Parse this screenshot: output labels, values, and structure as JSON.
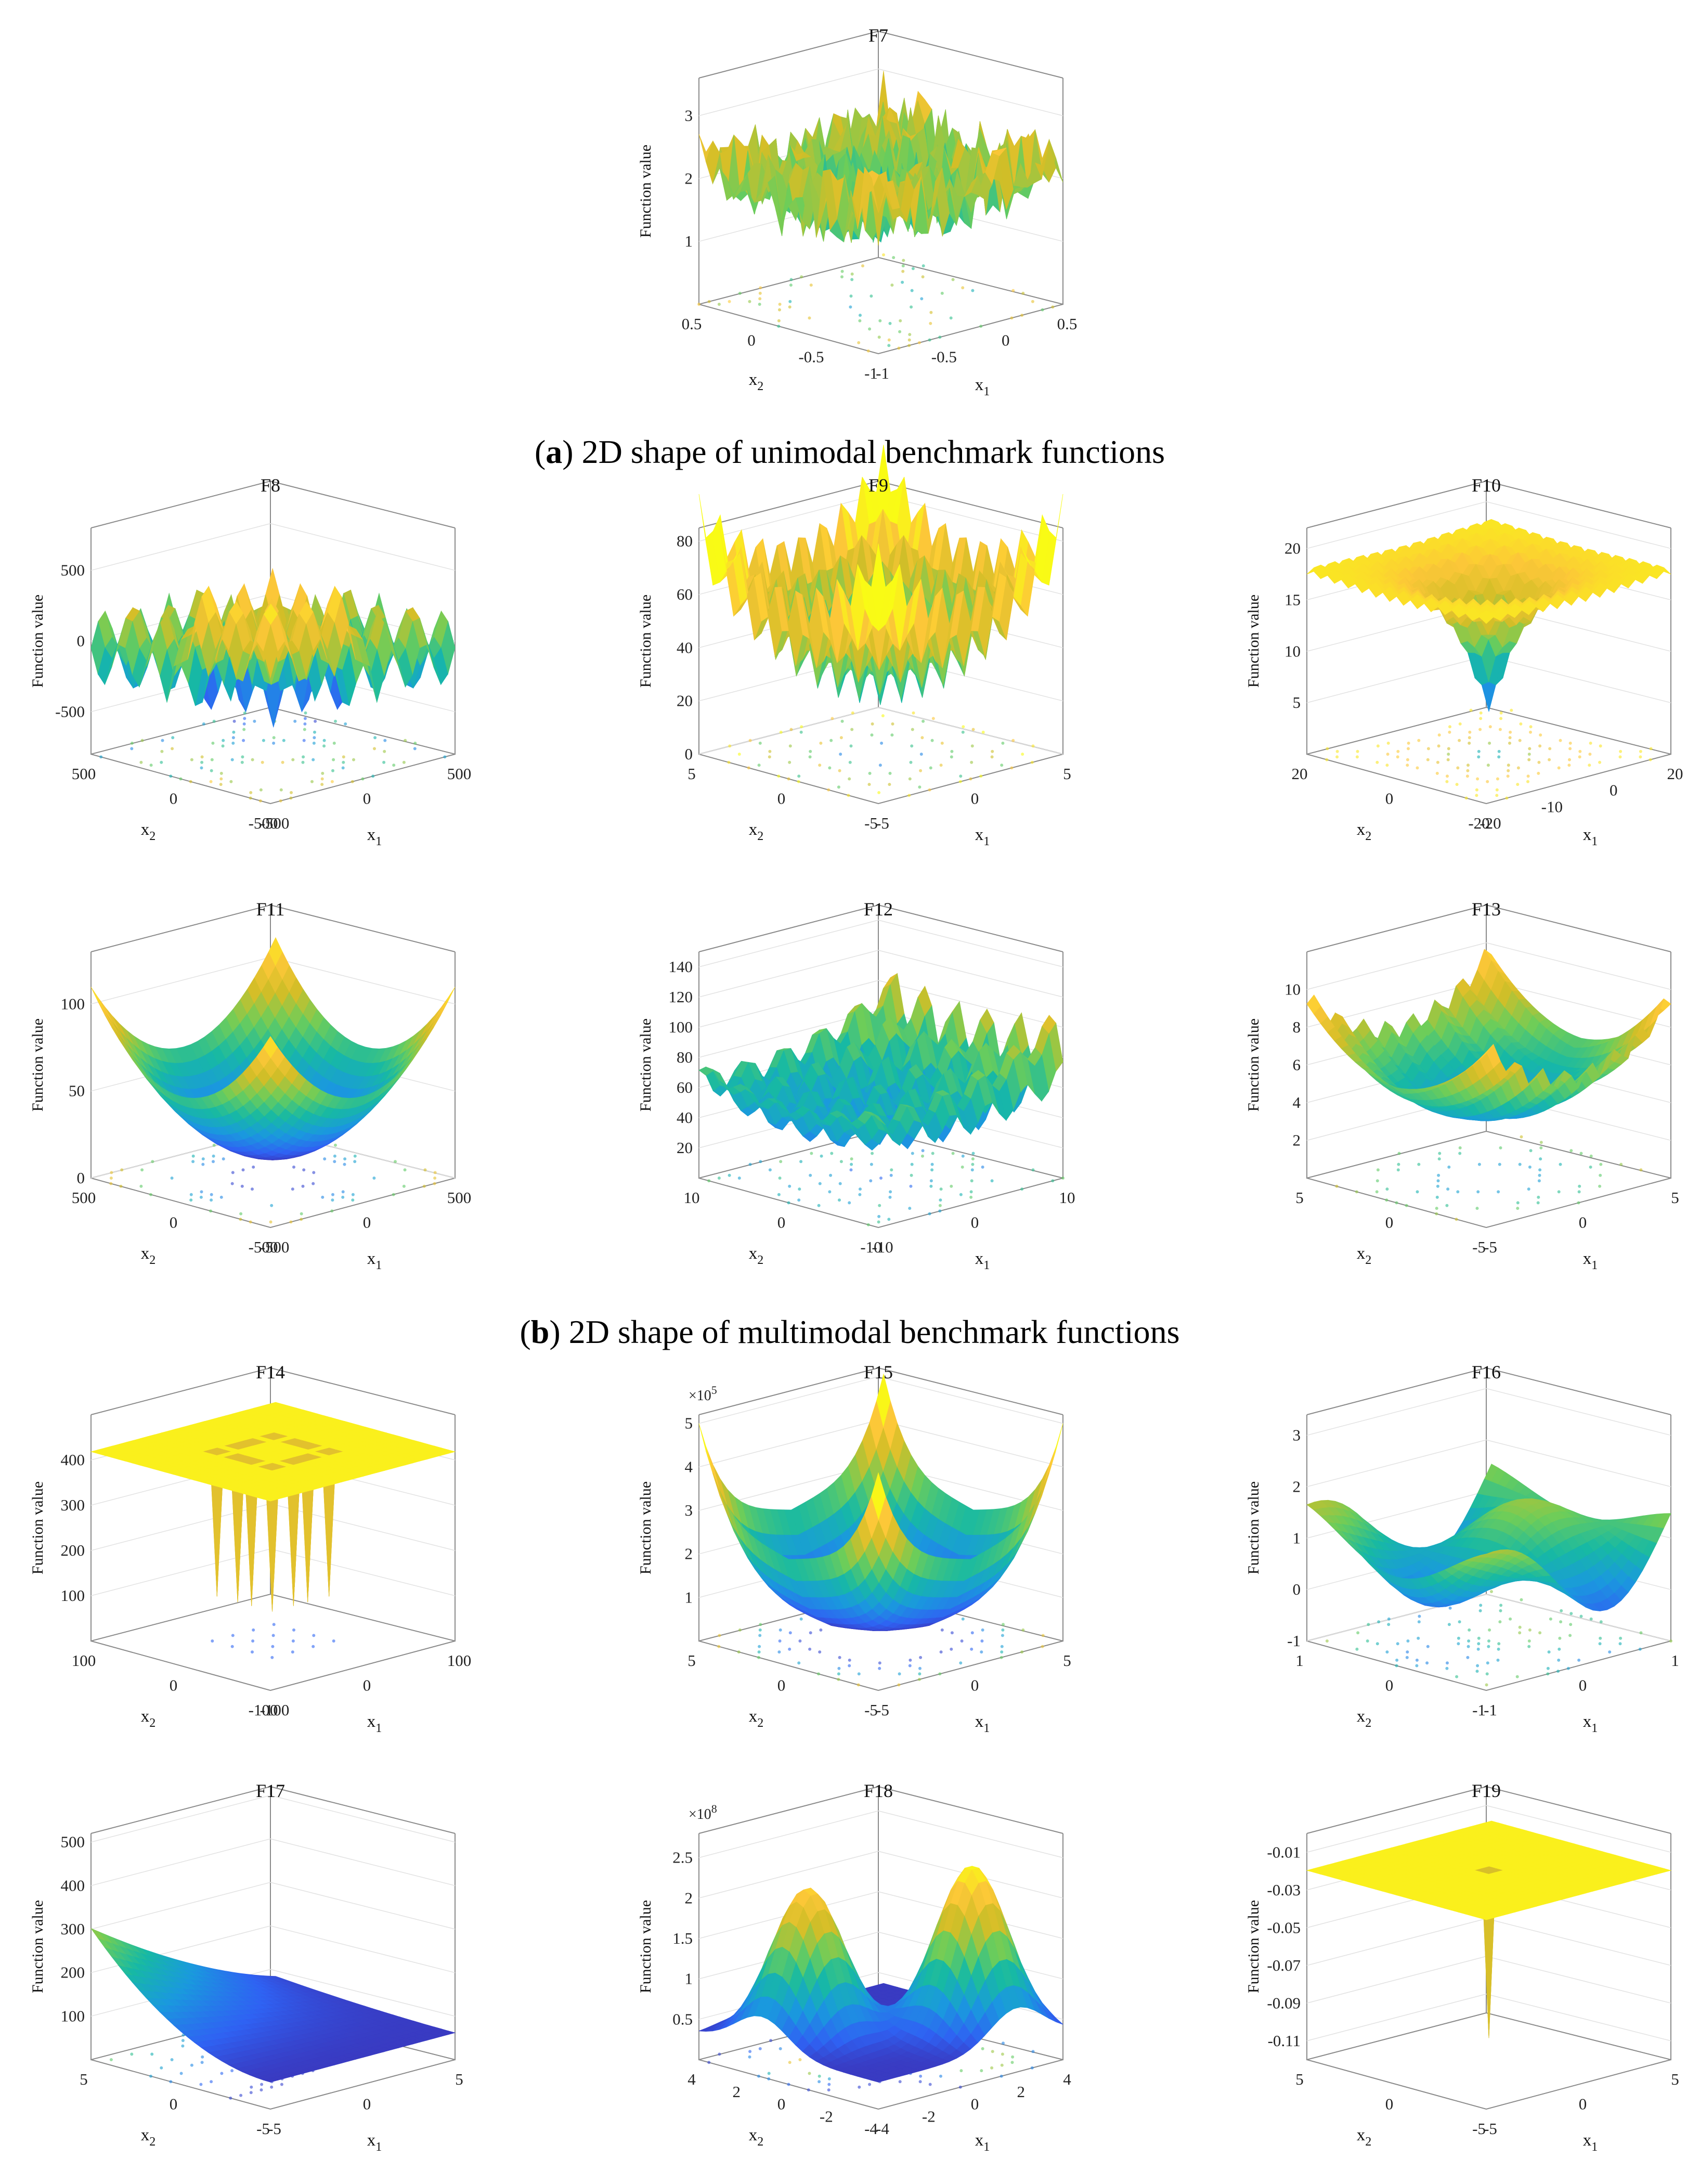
{
  "captions": {
    "a": {
      "letter": "a",
      "text": " 2D shape of unimodal benchmark functions"
    },
    "b": {
      "letter": "b",
      "text": " 2D shape of multimodal benchmark functions"
    }
  },
  "colors": {
    "colormap": [
      "#3e26a8",
      "#2f62f3",
      "#1a99de",
      "#17b9a4",
      "#6ccd5a",
      "#d3be27",
      "#fcc738",
      "#f9fb15"
    ],
    "box": "#8a8a8a",
    "grid": "#e2e2e2",
    "text": "#111111"
  },
  "chart_data": [
    {
      "id": "F7",
      "type": "surface3d",
      "title": "F7",
      "surface": "noise",
      "zlabel": "Function value",
      "zticks": [
        "1",
        "2",
        "3"
      ],
      "zlim": [
        0,
        3.6
      ],
      "xlabel": "x",
      "xlabel_sub": "1",
      "x_ticks": [
        "-1",
        "-0.5",
        "0",
        "0.5"
      ],
      "ylabel": "x",
      "ylabel_sub": "2",
      "y_ticks": [
        "-1",
        "-0.5",
        "0",
        "0.5"
      ]
    },
    {
      "id": "F8",
      "type": "surface3d",
      "title": "F8",
      "surface": "schwefel",
      "zlabel": "Function value",
      "zticks": [
        "-500",
        "0",
        "500"
      ],
      "zlim": [
        -800,
        800
      ],
      "xlabel": "x",
      "xlabel_sub": "1",
      "x_ticks": [
        "-500",
        "0",
        "500"
      ],
      "ylabel": "x",
      "ylabel_sub": "2",
      "y_ticks": [
        "-500",
        "0",
        "500"
      ]
    },
    {
      "id": "F9",
      "type": "surface3d",
      "title": "F9",
      "surface": "rastrigin",
      "zlabel": "Function value",
      "zticks": [
        "0",
        "20",
        "40",
        "60",
        "80"
      ],
      "zlim": [
        0,
        85
      ],
      "xlabel": "x",
      "xlabel_sub": "1",
      "x_ticks": [
        "-5",
        "0",
        "5"
      ],
      "ylabel": "x",
      "ylabel_sub": "2",
      "y_ticks": [
        "-5",
        "0",
        "5"
      ]
    },
    {
      "id": "F10",
      "type": "surface3d",
      "title": "F10",
      "surface": "ackley",
      "zlabel": "Function value",
      "zticks": [
        "5",
        "10",
        "15",
        "20"
      ],
      "zlim": [
        0,
        22
      ],
      "xlabel": "x",
      "xlabel_sub": "1",
      "x_ticks": [
        "-20",
        "-10",
        "0",
        "20"
      ],
      "ylabel": "x",
      "ylabel_sub": "2",
      "y_ticks": [
        "-20",
        "0",
        "20"
      ]
    },
    {
      "id": "F11",
      "type": "surface3d",
      "title": "F11",
      "surface": "griewank",
      "zlabel": "Function value",
      "zticks": [
        "0",
        "50",
        "100"
      ],
      "zlim": [
        0,
        130
      ],
      "xlabel": "x",
      "xlabel_sub": "1",
      "x_ticks": [
        "-500",
        "0",
        "500"
      ],
      "ylabel": "x",
      "ylabel_sub": "2",
      "y_ticks": [
        "-500",
        "0",
        "500"
      ]
    },
    {
      "id": "F12",
      "type": "surface3d",
      "title": "F12",
      "surface": "penalized1",
      "zlabel": "Function value",
      "zticks": [
        "20",
        "40",
        "60",
        "80",
        "100",
        "120",
        "140"
      ],
      "zlim": [
        0,
        150
      ],
      "xlabel": "x",
      "xlabel_sub": "1",
      "x_ticks": [
        "-10",
        "0",
        "10"
      ],
      "ylabel": "x",
      "ylabel_sub": "2",
      "y_ticks": [
        "-10",
        "0",
        "10"
      ]
    },
    {
      "id": "F13",
      "type": "surface3d",
      "title": "F13",
      "surface": "penalized2",
      "zlabel": "Function value",
      "zticks": [
        "2",
        "4",
        "6",
        "8",
        "10"
      ],
      "zlim": [
        0,
        12
      ],
      "xlabel": "x",
      "xlabel_sub": "1",
      "x_ticks": [
        "-5",
        "0",
        "5"
      ],
      "ylabel": "x",
      "ylabel_sub": "2",
      "y_ticks": [
        "-5",
        "0",
        "5"
      ]
    },
    {
      "id": "F14",
      "type": "surface3d",
      "title": "F14",
      "surface": "foxholes",
      "zlabel": "Function value",
      "zticks": [
        "100",
        "200",
        "300",
        "400"
      ],
      "zlim": [
        0,
        500
      ],
      "xlabel": "x",
      "xlabel_sub": "1",
      "x_ticks": [
        "-100",
        "0",
        "100"
      ],
      "ylabel": "x",
      "ylabel_sub": "2",
      "y_ticks": [
        "-100",
        "0",
        "100"
      ]
    },
    {
      "id": "F15",
      "type": "surface3d",
      "title": "F15",
      "surface": "bowl4",
      "exponent_label": "×10",
      "exponent_power": "5",
      "zlabel": "Function value",
      "zticks": [
        "1",
        "2",
        "3",
        "4",
        "5"
      ],
      "zlim": [
        0,
        5.2
      ],
      "xlabel": "x",
      "xlabel_sub": "1",
      "x_ticks": [
        "-5",
        "0",
        "5"
      ],
      "ylabel": "x",
      "ylabel_sub": "2",
      "y_ticks": [
        "-5",
        "0",
        "5"
      ]
    },
    {
      "id": "F16",
      "type": "surface3d",
      "title": "F16",
      "surface": "camel",
      "zlabel": "Function value",
      "zticks": [
        "-1",
        "0",
        "1",
        "2",
        "3"
      ],
      "zlim": [
        -1,
        3.4
      ],
      "xlabel": "x",
      "xlabel_sub": "1",
      "x_ticks": [
        "-1",
        "0",
        "1"
      ],
      "ylabel": "x",
      "ylabel_sub": "2",
      "y_ticks": [
        "-1",
        "0",
        "1"
      ]
    },
    {
      "id": "F17",
      "type": "surface3d",
      "title": "F17",
      "surface": "branin",
      "zlabel": "Function value",
      "zticks": [
        "100",
        "200",
        "300",
        "400",
        "500"
      ],
      "zlim": [
        0,
        520
      ],
      "xlabel": "x",
      "xlabel_sub": "1",
      "x_ticks": [
        "-5",
        "0",
        "5"
      ],
      "ylabel": "x",
      "ylabel_sub": "2",
      "y_ticks": [
        "-5",
        "0",
        "5"
      ]
    },
    {
      "id": "F18",
      "type": "surface3d",
      "title": "F18",
      "surface": "goldstein",
      "exponent_label": "×10",
      "exponent_power": "8",
      "zlabel": "Function value",
      "zticks": [
        "0.5",
        "1",
        "1.5",
        "2",
        "2.5"
      ],
      "zlim": [
        0,
        2.8
      ],
      "xlabel": "x",
      "xlabel_sub": "1",
      "x_ticks": [
        "-4",
        "-2",
        "0",
        "2",
        "4"
      ],
      "ylabel": "x",
      "ylabel_sub": "2",
      "y_ticks": [
        "-4",
        "-2",
        "0",
        "2",
        "4"
      ]
    },
    {
      "id": "F19",
      "type": "surface3d",
      "title": "F19",
      "surface": "hartman",
      "zlabel": "Function value",
      "zticks": [
        "-0.11",
        "-0.09",
        "-0.07",
        "-0.05",
        "-0.03",
        "-0.01"
      ],
      "zlim": [
        -0.12,
        0.0
      ],
      "xlabel": "x",
      "xlabel_sub": "1",
      "x_ticks": [
        "-5",
        "0",
        "5"
      ],
      "ylabel": "x",
      "ylabel_sub": "2",
      "y_ticks": [
        "-5",
        "0",
        "5"
      ]
    }
  ]
}
